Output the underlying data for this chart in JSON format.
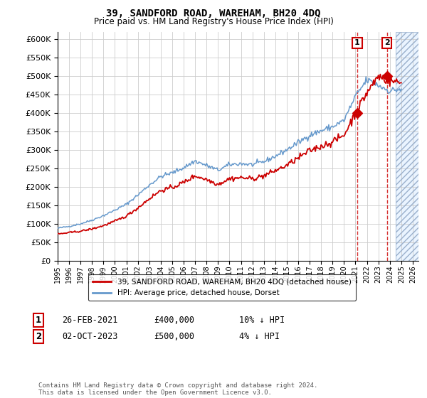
{
  "title": "39, SANDFORD ROAD, WAREHAM, BH20 4DQ",
  "subtitle": "Price paid vs. HM Land Registry's House Price Index (HPI)",
  "ylim": [
    0,
    620000
  ],
  "yticks": [
    0,
    50000,
    100000,
    150000,
    200000,
    250000,
    300000,
    350000,
    400000,
    450000,
    500000,
    550000,
    600000
  ],
  "xlim_start": 1995.0,
  "xlim_end": 2026.5,
  "hpi_color": "#6699cc",
  "price_color": "#cc0000",
  "marker1_x": 2021.15,
  "marker1_y": 400000,
  "marker2_x": 2023.75,
  "marker2_y": 500000,
  "legend_line1": "39, SANDFORD ROAD, WAREHAM, BH20 4DQ (detached house)",
  "legend_line2": "HPI: Average price, detached house, Dorset",
  "annotation1_label": "1",
  "annotation1_date": "26-FEB-2021",
  "annotation1_price": "£400,000",
  "annotation1_hpi": "10% ↓ HPI",
  "annotation2_label": "2",
  "annotation2_date": "02-OCT-2023",
  "annotation2_price": "£500,000",
  "annotation2_hpi": "4% ↓ HPI",
  "footer": "Contains HM Land Registry data © Crown copyright and database right 2024.\nThis data is licensed under the Open Government Licence v3.0.",
  "background_color": "#ffffff",
  "grid_color": "#cccccc",
  "hatch_start": 2024.5,
  "hpi_years": [
    1995,
    1996,
    1997,
    1998,
    1999,
    2000,
    2001,
    2002,
    2003,
    2004,
    2005,
    2006,
    2007,
    2008,
    2009,
    2010,
    2011,
    2012,
    2013,
    2014,
    2015,
    2016,
    2017,
    2018,
    2019,
    2020,
    2021,
    2022,
    2023,
    2024,
    2025
  ],
  "hpi_values": [
    88000,
    93000,
    100000,
    110000,
    122000,
    137000,
    153000,
    178000,
    205000,
    228000,
    238000,
    252000,
    270000,
    258000,
    245000,
    260000,
    263000,
    260000,
    268000,
    283000,
    300000,
    320000,
    340000,
    352000,
    363000,
    380000,
    445000,
    490000,
    475000,
    460000,
    465000
  ],
  "price_years": [
    1995,
    1996,
    1997,
    1998,
    1999,
    2000,
    2001,
    2002,
    2003,
    2004,
    2005,
    2006,
    2007,
    2008,
    2009,
    2010,
    2011,
    2012,
    2013,
    2014,
    2015,
    2016,
    2017,
    2018,
    2019,
    2020,
    2021,
    2022,
    2023,
    2024,
    2025
  ],
  "price_values": [
    72000,
    76000,
    80000,
    86000,
    95000,
    107000,
    121000,
    143000,
    168000,
    190000,
    198000,
    212000,
    230000,
    220000,
    207000,
    222000,
    225000,
    222000,
    230000,
    244000,
    258000,
    278000,
    298000,
    310000,
    322000,
    340000,
    400000,
    455000,
    500000,
    488000,
    482000
  ]
}
